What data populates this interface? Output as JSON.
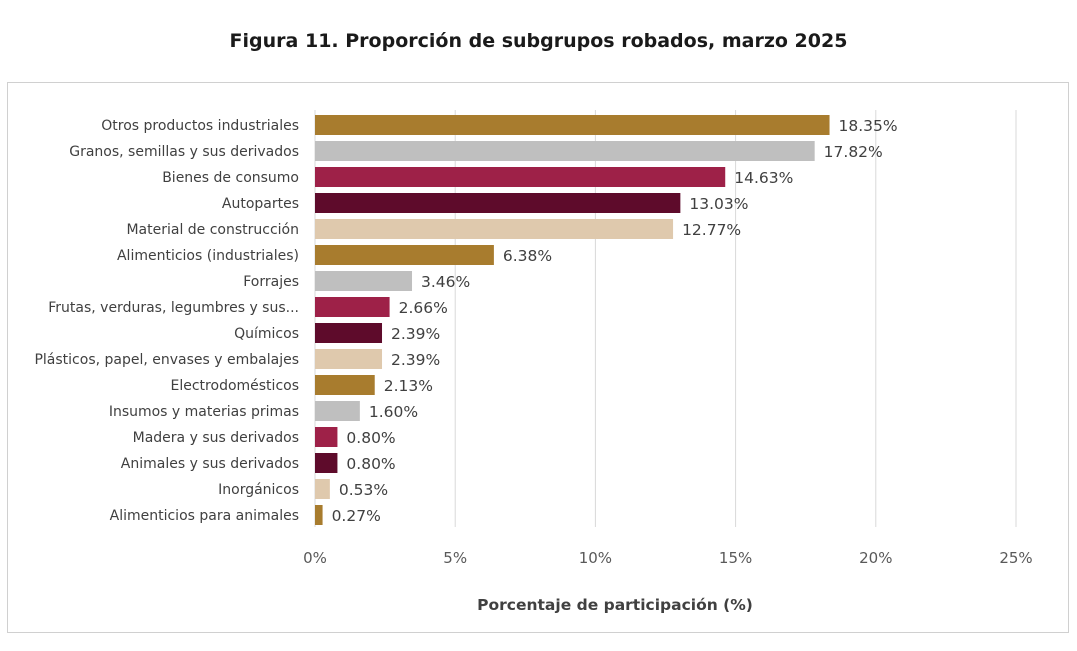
{
  "chart_data": {
    "type": "bar",
    "orientation": "horizontal",
    "title": "Figura 11. Proporción de subgrupos robados, marzo 2025",
    "xlabel": "Porcentaje de participación (%)",
    "ylabel": "",
    "xlim": [
      0,
      25
    ],
    "xticks": [
      0,
      5,
      10,
      15,
      20,
      25
    ],
    "xtick_labels": [
      "0%",
      "5%",
      "10%",
      "15%",
      "20%",
      "25%"
    ],
    "grid": true,
    "categories": [
      "Otros productos industriales",
      "Granos, semillas y sus derivados",
      "Bienes de consumo",
      "Autopartes",
      "Material de construcción",
      "Alimenticios (industriales)",
      "Forrajes",
      "Frutas, verduras, legumbres y sus...",
      "Químicos",
      "Plásticos, papel, envases y embalajes",
      "Electrodomésticos",
      "Insumos y materias primas",
      "Madera y sus derivados",
      "Animales y sus derivados",
      "Inorgánicos",
      "Alimenticios para animales"
    ],
    "values": [
      18.35,
      17.82,
      14.63,
      13.03,
      12.77,
      6.38,
      3.46,
      2.66,
      2.39,
      2.39,
      2.13,
      1.6,
      0.8,
      0.8,
      0.53,
      0.27
    ],
    "value_labels": [
      "18.35%",
      "17.82%",
      "14.63%",
      "13.03%",
      "12.77%",
      "6.38%",
      "3.46%",
      "2.66%",
      "2.39%",
      "2.39%",
      "2.13%",
      "1.60%",
      "0.80%",
      "0.80%",
      "0.53%",
      "0.27%"
    ],
    "color_cycle": [
      "#a87c2e",
      "#bfbfbf",
      "#9e2148",
      "#5e0b2b",
      "#dfc9ad"
    ]
  }
}
